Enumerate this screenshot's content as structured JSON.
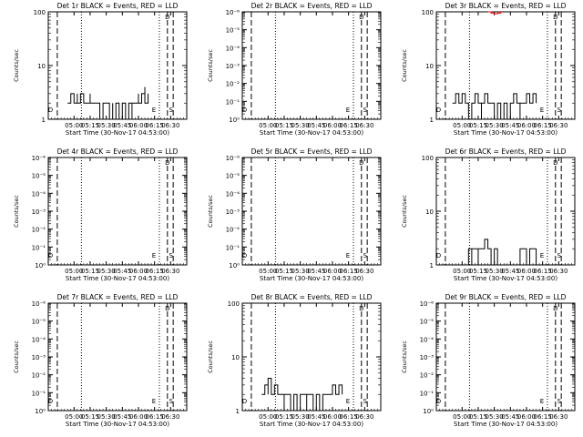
{
  "colors": {
    "events": "#000000",
    "lld": "#ff0000",
    "background": "#ffffff"
  },
  "chart_data": [
    {
      "type": "line",
      "title": "Det 1r BLACK = Events, RED = LLD",
      "xlabel": "Start Time (30-Nov-17 04:53:00)",
      "ylabel": "Counts/sec",
      "yscale": "log",
      "ylim": [
        1,
        100
      ],
      "ytick_labels": [
        "1",
        "10",
        "100"
      ],
      "xticks": [
        "05:00",
        "05:15",
        "05:30",
        "05:45",
        "06:00",
        "06:15",
        "06:30"
      ],
      "xlim_minutes": [
        -8,
        35
      ],
      "markers": [
        "D",
        "E",
        "S",
        "D"
      ],
      "series": [
        {
          "color": "#000000",
          "x": [
            -2,
            -1,
            0,
            1,
            1,
            2,
            3,
            4,
            5,
            5,
            6,
            7,
            8,
            8,
            9,
            10,
            11,
            12,
            12,
            13,
            14,
            15,
            16,
            17,
            18,
            18,
            19,
            20,
            20,
            21,
            22,
            22,
            23
          ],
          "y": [
            2,
            3,
            2,
            3,
            2,
            3,
            2,
            2,
            3,
            2,
            2,
            2,
            2,
            1,
            2,
            2,
            1,
            2,
            1,
            2,
            1,
            2,
            1,
            2,
            1,
            2,
            2,
            3,
            2,
            3,
            4,
            2,
            3
          ]
        }
      ]
    },
    {
      "type": "line",
      "title": "Det 2r BLACK = Events, RED = LLD",
      "xlabel": "Start Time (30-Nov-17 04:53:00)",
      "ylabel": "Counts/sec",
      "yscale": "log",
      "ylim": [
        1,
        1e-06
      ],
      "ytick_labels": [
        "10⁰",
        "10⁻¹",
        "10⁻²",
        "10⁻³",
        "10⁻⁴",
        "10⁻⁵",
        "10⁻⁶"
      ],
      "xticks": [
        "05:00",
        "05:15",
        "05:30",
        "05:45",
        "06:00",
        "06:15",
        "06:30"
      ],
      "xlim_minutes": [
        -8,
        35
      ],
      "markers": [
        "D",
        "E",
        "S",
        "D"
      ],
      "series": []
    },
    {
      "type": "line",
      "title": "Det 3r BLACK = Events, RED = LLD",
      "xlabel": "Start Time (30-Nov-17 04:53:00)",
      "ylabel": "Counts/sec",
      "yscale": "log",
      "ylim": [
        1,
        100
      ],
      "ytick_labels": [
        "1",
        "10",
        "100"
      ],
      "xticks": [
        "05:00",
        "05:15",
        "05:30",
        "05:45",
        "06:00",
        "06:15",
        "06:30"
      ],
      "xlim_minutes": [
        -8,
        35
      ],
      "markers": [
        "D",
        "E",
        "S",
        "D"
      ],
      "series": [
        {
          "color": "#000000",
          "x": [
            -3,
            -2,
            -1,
            0,
            1,
            2,
            2,
            3,
            4,
            5,
            6,
            6,
            7,
            8,
            9,
            10,
            11,
            12,
            12,
            13,
            14,
            15,
            16,
            17,
            18,
            18,
            19,
            20,
            21,
            22,
            23
          ],
          "y": [
            2,
            3,
            2,
            3,
            2,
            2,
            1,
            2,
            3,
            2,
            1,
            2,
            3,
            2,
            2,
            1,
            2,
            2,
            1,
            2,
            1,
            2,
            3,
            2,
            1,
            2,
            2,
            3,
            2,
            3,
            2
          ]
        },
        {
          "color": "#ff0000",
          "x": [
            8,
            9,
            10,
            11,
            12
          ],
          "y": [
            100,
            95,
            92,
            95,
            100
          ]
        }
      ]
    },
    {
      "type": "line",
      "title": "Det 4r BLACK = Events, RED = LLD",
      "xlabel": "Start Time (30-Nov-17 04:53:00)",
      "ylabel": "Counts/sec",
      "yscale": "log",
      "ylim": [
        1,
        1e-06
      ],
      "ytick_labels": [
        "10⁰",
        "10⁻¹",
        "10⁻²",
        "10⁻³",
        "10⁻⁴",
        "10⁻⁵",
        "10⁻⁶"
      ],
      "xticks": [
        "05:00",
        "05:15",
        "05:30",
        "05:45",
        "06:00",
        "06:15",
        "06:30"
      ],
      "xlim_minutes": [
        -8,
        35
      ],
      "markers": [
        "D",
        "E",
        "S",
        "D"
      ],
      "series": []
    },
    {
      "type": "line",
      "title": "Det 5r BLACK = Events, RED = LLD",
      "xlabel": "Start Time (30-Nov-17 04:53:00)",
      "ylabel": "Counts/sec",
      "yscale": "log",
      "ylim": [
        1,
        1e-06
      ],
      "ytick_labels": [
        "10⁰",
        "10⁻¹",
        "10⁻²",
        "10⁻³",
        "10⁻⁴",
        "10⁻⁵",
        "10⁻⁶"
      ],
      "xticks": [
        "05:00",
        "05:15",
        "05:30",
        "05:45",
        "06:00",
        "06:15",
        "06:30"
      ],
      "xlim_minutes": [
        -8,
        35
      ],
      "markers": [
        "D",
        "E",
        "S",
        "D"
      ],
      "series": []
    },
    {
      "type": "line",
      "title": "Det 6r BLACK = Events, RED = LLD",
      "xlabel": "Start Time (30-Nov-17 04:53:00)",
      "ylabel": "Counts/sec",
      "yscale": "log",
      "ylim": [
        1,
        100
      ],
      "ytick_labels": [
        "1",
        "10",
        "100"
      ],
      "xticks": [
        "05:00",
        "05:15",
        "05:30",
        "05:45",
        "06:00",
        "06:15",
        "06:30"
      ],
      "xlim_minutes": [
        -8,
        35
      ],
      "markers": [
        "D",
        "E",
        "S",
        "D"
      ],
      "series": [
        {
          "color": "#000000",
          "x": [
            1,
            2,
            3,
            3,
            4,
            5,
            5,
            6,
            7,
            8,
            9,
            10,
            11,
            12,
            13,
            14,
            15,
            16,
            17,
            18,
            19,
            20,
            21,
            22,
            23
          ],
          "y": [
            1,
            2,
            1,
            2,
            2,
            1,
            2,
            2,
            3,
            2,
            1,
            2,
            1,
            1,
            1,
            1,
            1,
            1,
            1,
            2,
            2,
            1,
            2,
            2,
            1
          ]
        }
      ]
    },
    {
      "type": "line",
      "title": "Det 7r BLACK = Events, RED = LLD",
      "xlabel": "Start Time (30-Nov-17 04:53:00)",
      "ylabel": "Counts/sec",
      "yscale": "log",
      "ylim": [
        1,
        1e-06
      ],
      "ytick_labels": [
        "10⁰",
        "10⁻¹",
        "10⁻²",
        "10⁻³",
        "10⁻⁴",
        "10⁻⁵",
        "10⁻⁶"
      ],
      "xticks": [
        "05:00",
        "05:15",
        "05:30",
        "05:45",
        "06:00",
        "06:15",
        "06:30"
      ],
      "xlim_minutes": [
        -8,
        35
      ],
      "markers": [
        "D",
        "E",
        "S",
        "D"
      ],
      "series": []
    },
    {
      "type": "line",
      "title": "Det 8r BLACK = Events, RED = LLD",
      "xlabel": "Start Time (30-Nov-17 04:53:00)",
      "ylabel": "Counts/sec",
      "yscale": "log",
      "ylim": [
        1,
        100
      ],
      "ytick_labels": [
        "1",
        "10",
        "100"
      ],
      "xticks": [
        "05:00",
        "05:15",
        "05:30",
        "05:45",
        "06:00",
        "06:15",
        "06:30"
      ],
      "xlim_minutes": [
        -8,
        35
      ],
      "markers": [
        "D",
        "E",
        "S",
        "D"
      ],
      "series": [
        {
          "color": "#000000",
          "x": [
            -2,
            -1,
            0,
            0,
            1,
            2,
            3,
            4,
            5,
            5,
            6,
            7,
            8,
            9,
            10,
            11,
            12,
            12,
            13,
            14,
            15,
            16,
            17,
            18,
            19,
            20,
            21,
            22,
            23
          ],
          "y": [
            2,
            3,
            2,
            4,
            2,
            3,
            2,
            2,
            1,
            2,
            2,
            1,
            2,
            1,
            2,
            2,
            1,
            2,
            2,
            1,
            2,
            1,
            2,
            2,
            2,
            3,
            2,
            3,
            2
          ]
        }
      ]
    },
    {
      "type": "line",
      "title": "Det 9r BLACK = Events, RED = LLD",
      "xlabel": "Start Time (30-Nov-17 04:53:00)",
      "ylabel": "Counts/sec",
      "yscale": "log",
      "ylim": [
        1,
        1e-06
      ],
      "ytick_labels": [
        "10⁰",
        "10⁻¹",
        "10⁻²",
        "10⁻³",
        "10⁻⁴",
        "10⁻⁵",
        "10⁻⁶"
      ],
      "xticks": [
        "05:00",
        "05:15",
        "05:30",
        "05:45",
        "06:00",
        "06:15",
        "06:30"
      ],
      "xlim_minutes": [
        -8,
        35
      ],
      "markers": [
        "D",
        "E",
        "S",
        "D"
      ],
      "series": []
    }
  ]
}
